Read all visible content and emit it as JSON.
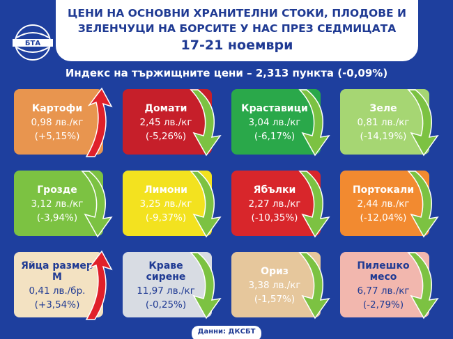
{
  "header": {
    "title": "ЦЕНИ НА ОСНОВНИ ХРАНИТЕЛНИ СТОКИ, ПЛОДОВЕ И ЗЕЛЕНЧУЦИ НА БОРСИТЕ У НАС ПРЕЗ СЕДМИЦАТА",
    "date": "17-21 ноември",
    "logo": "БТА",
    "subtitle": "Индекс на тържищните цени – 2,313 пункта (-0,09%)"
  },
  "items": [
    {
      "name": "Картофи",
      "price": "0,98 лв./кг",
      "change": "(+5,15%)",
      "color": "#e8954f",
      "text_color": "#ffffff",
      "arrow": "up"
    },
    {
      "name": "Домати",
      "price": "2,45 лв./кг",
      "change": "(-5,26%)",
      "color": "#c61f2a",
      "text_color": "#ffffff",
      "arrow": "down"
    },
    {
      "name": "Краставици",
      "price": "3,04 лв./кг",
      "change": "(-6,17%)",
      "color": "#2aa84a",
      "text_color": "#ffffff",
      "arrow": "down"
    },
    {
      "name": "Зеле",
      "price": "0,81 лв./кг",
      "change": "(-14,19%)",
      "color": "#a6d673",
      "text_color": "#ffffff",
      "arrow": "down"
    },
    {
      "name": "Грозде",
      "price": "3,12 лв./кг",
      "change": "(-3,94%)",
      "color": "#7cc242",
      "text_color": "#ffffff",
      "arrow": "down"
    },
    {
      "name": "Лимони",
      "price": "3,25 лв./кг",
      "change": "(-9,37%)",
      "color": "#f3e21f",
      "text_color": "#ffffff",
      "arrow": "down"
    },
    {
      "name": "Ябълки",
      "price": "2,27 лв./кг",
      "change": "(-10,35%)",
      "color": "#d8262b",
      "text_color": "#ffffff",
      "arrow": "down"
    },
    {
      "name": "Портокали",
      "price": "2,44 лв./кг",
      "change": "(-12,04%)",
      "color": "#f28a30",
      "text_color": "#ffffff",
      "arrow": "down"
    },
    {
      "name": "Яйца размер М",
      "price": "0,41 лв./бр.",
      "change": "(+3,54%)",
      "color": "#f3e2c2",
      "text_color": "#1f3a93",
      "arrow": "up"
    },
    {
      "name": "Краве сирене",
      "price": "11,97 лв./кг",
      "change": "(-0,25%)",
      "color": "#d8dce3",
      "text_color": "#1f3a93",
      "arrow": "down"
    },
    {
      "name": "Ориз",
      "price": "3,38 лв./кг",
      "change": "(-1,57%)",
      "color": "#e6c79c",
      "text_color": "#ffffff",
      "arrow": "down"
    },
    {
      "name": "Пилешко месо",
      "price": "6,77 лв./кг",
      "change": "(-2,79%)",
      "color": "#f2b7ae",
      "text_color": "#1f3a93",
      "arrow": "down"
    }
  ],
  "footer": {
    "source": "Данни: ДКСБТ"
  }
}
